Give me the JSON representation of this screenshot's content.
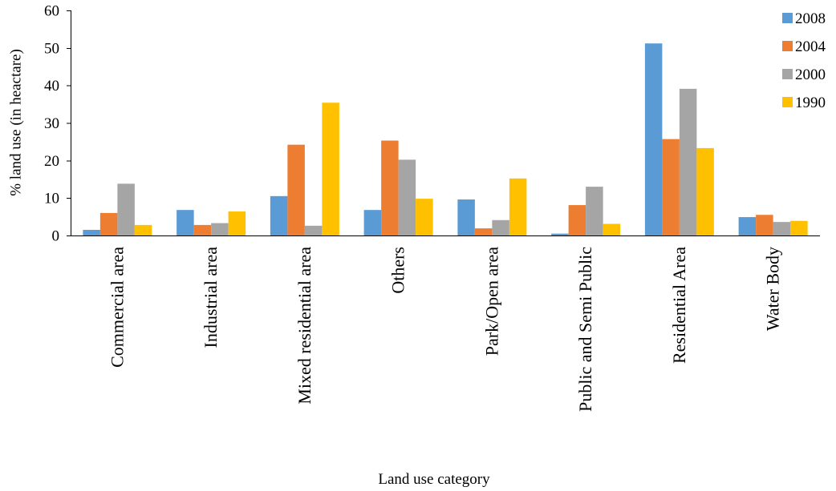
{
  "chart_data": {
    "type": "bar",
    "title": "",
    "xlabel": "Land use category",
    "ylabel": "% land use (in heactare)",
    "ylim": [
      0,
      60
    ],
    "yticks": [
      0,
      10,
      20,
      30,
      40,
      50,
      60
    ],
    "grid": false,
    "legend_position": "top-right",
    "categories": [
      "Commercial area",
      "Industrial area",
      "Mixed residential area",
      "Others",
      "Park/Open area",
      "Public and Semi Public",
      "Residential Area",
      "Water Body"
    ],
    "series": [
      {
        "name": "2008",
        "color": "#5B9BD5",
        "values": [
          1.5,
          6.8,
          10.5,
          6.8,
          9.6,
          0.5,
          51.2,
          4.9
        ]
      },
      {
        "name": "2004",
        "color": "#ED7D31",
        "values": [
          6.0,
          2.8,
          24.2,
          25.3,
          1.9,
          8.1,
          25.7,
          5.5
        ]
      },
      {
        "name": "2000",
        "color": "#A5A5A5",
        "values": [
          13.8,
          3.3,
          2.6,
          20.2,
          4.1,
          13.0,
          39.1,
          3.6
        ]
      },
      {
        "name": "1990",
        "color": "#FFC000",
        "values": [
          2.8,
          6.4,
          35.4,
          9.8,
          15.2,
          3.1,
          23.3,
          3.9
        ]
      }
    ]
  }
}
